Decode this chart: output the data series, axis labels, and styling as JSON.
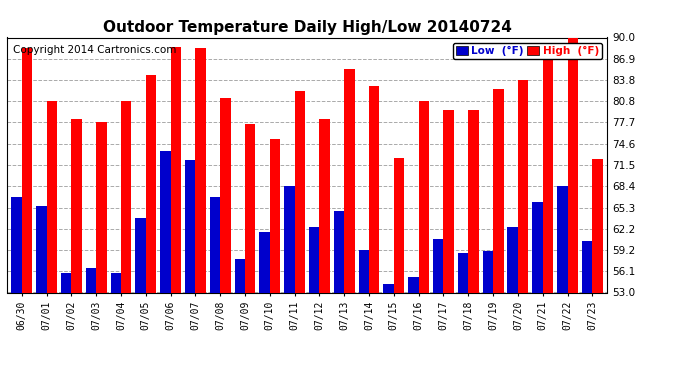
{
  "title": "Outdoor Temperature Daily High/Low 20140724",
  "copyright": "Copyright 2014 Cartronics.com",
  "dates": [
    "06/30",
    "07/01",
    "07/02",
    "07/03",
    "07/04",
    "07/05",
    "07/06",
    "07/07",
    "07/08",
    "07/09",
    "07/10",
    "07/11",
    "07/12",
    "07/13",
    "07/14",
    "07/15",
    "07/16",
    "07/17",
    "07/18",
    "07/19",
    "07/20",
    "07/21",
    "07/22",
    "07/23"
  ],
  "highs": [
    88.5,
    80.8,
    78.2,
    77.7,
    80.8,
    84.6,
    88.6,
    88.5,
    81.2,
    77.5,
    75.2,
    82.3,
    78.2,
    85.5,
    83.0,
    72.5,
    80.8,
    79.5,
    79.5,
    82.5,
    83.8,
    87.2,
    90.2,
    72.3
  ],
  "lows": [
    66.8,
    65.5,
    55.9,
    56.5,
    55.8,
    63.8,
    73.5,
    72.2,
    66.8,
    57.8,
    61.8,
    68.5,
    62.5,
    64.8,
    59.2,
    54.2,
    55.3,
    60.8,
    58.8,
    59.0,
    62.5,
    66.2,
    68.5,
    60.5
  ],
  "ylim_min": 53.0,
  "ylim_max": 90.0,
  "yticks": [
    53.0,
    56.1,
    59.2,
    62.2,
    65.3,
    68.4,
    71.5,
    74.6,
    77.7,
    80.8,
    83.8,
    86.9,
    90.0
  ],
  "high_color": "#ff0000",
  "low_color": "#0000cc",
  "background_color": "#ffffff",
  "plot_bg_color": "#ffffff",
  "grid_color": "#aaaaaa",
  "title_fontsize": 11,
  "copyright_fontsize": 7.5,
  "bar_width": 0.42
}
